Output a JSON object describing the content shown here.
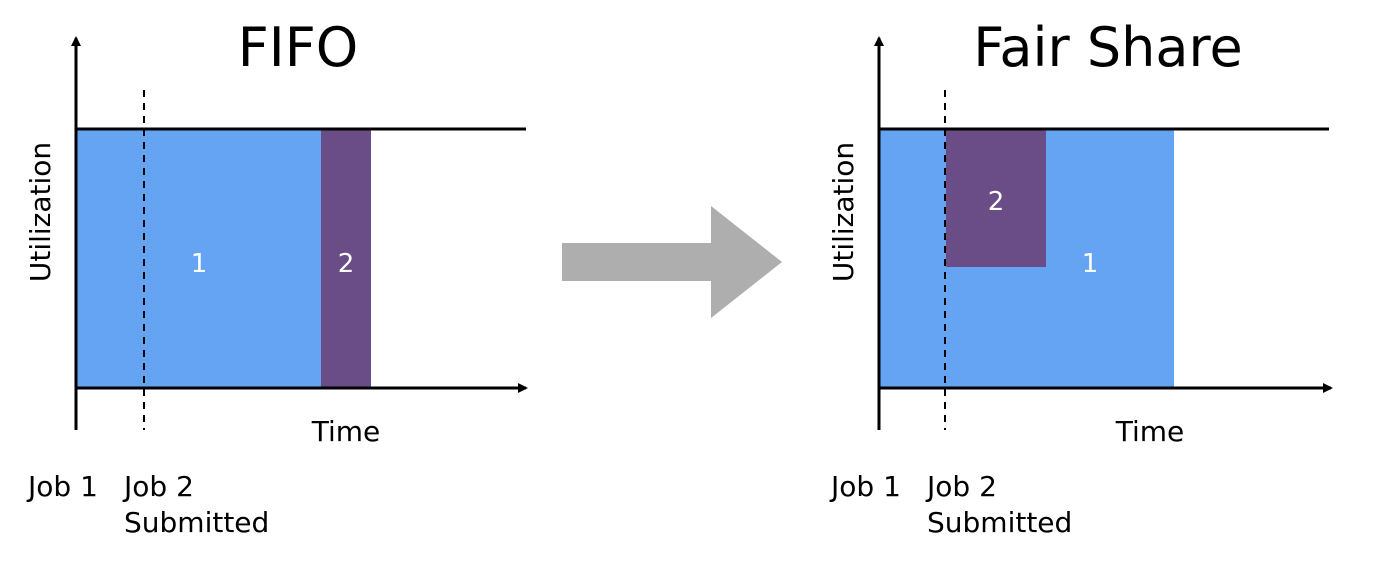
{
  "colors": {
    "job1": "#64a4f2",
    "job2": "#6a4c86",
    "arrow": "#aeaeae",
    "axis": "#000000"
  },
  "left": {
    "title": "FIFO",
    "ylabel": "Utilization",
    "xlabel": "Time",
    "job1_block_label": "1",
    "job2_block_label": "2",
    "job1_caption": "Job 1",
    "job2_caption_line1": "Job 2",
    "job2_caption_line2": "Submitted"
  },
  "right": {
    "title": "Fair Share",
    "ylabel": "Utilization",
    "xlabel": "Time",
    "job1_block_label": "1",
    "job2_block_label": "2",
    "job1_caption": "Job 1",
    "job2_caption_line1": "Job 2",
    "job2_caption_line2": "Submitted"
  },
  "transition_icon": "right-arrow-icon"
}
